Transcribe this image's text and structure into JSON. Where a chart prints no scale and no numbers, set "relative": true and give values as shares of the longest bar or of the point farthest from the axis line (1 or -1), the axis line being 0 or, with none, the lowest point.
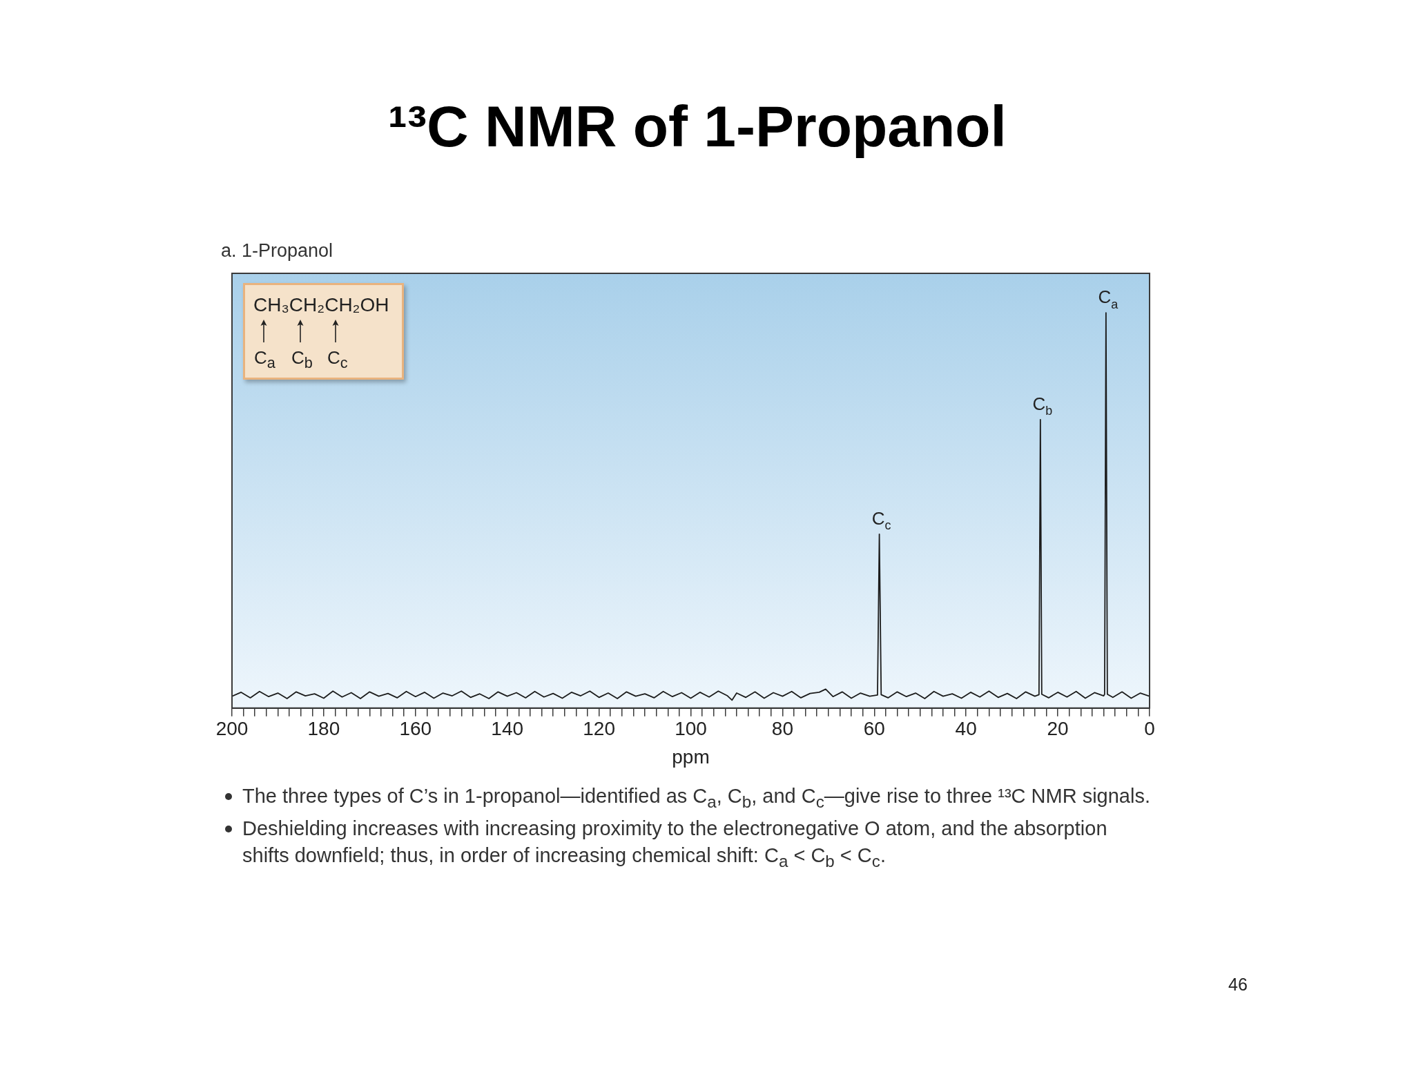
{
  "chart_data": {
    "type": "line",
    "title": "¹³C NMR of 1-Propanol",
    "subtitle": "a. 1-Propanol",
    "xlabel": "ppm",
    "relative": true,
    "xlim": [
      200,
      0
    ],
    "xticks": [
      200,
      {
        "value": 197.5,
        "label": null
      },
      {
        "value": 195,
        "label": null
      },
      {
        "value": 192.5,
        "label": null
      },
      {
        "value": 190,
        "label": null
      },
      {
        "value": 187.5,
        "label": null
      },
      {
        "value": 185,
        "label": null
      },
      {
        "value": 182.5,
        "label": null
      },
      180,
      {
        "value": 177.5,
        "label": null
      },
      {
        "value": 175,
        "label": null
      },
      {
        "value": 172.5,
        "label": null
      },
      {
        "value": 170,
        "label": null
      },
      {
        "value": 167.5,
        "label": null
      },
      {
        "value": 165,
        "label": null
      },
      {
        "value": 162.5,
        "label": null
      },
      160,
      {
        "value": 157.5,
        "label": null
      },
      {
        "value": 155,
        "label": null
      },
      {
        "value": 152.5,
        "label": null
      },
      {
        "value": 150,
        "label": null
      },
      {
        "value": 147.5,
        "label": null
      },
      {
        "value": 145,
        "label": null
      },
      {
        "value": 142.5,
        "label": null
      },
      140,
      {
        "value": 137.5,
        "label": null
      },
      {
        "value": 135,
        "label": null
      },
      {
        "value": 132.5,
        "label": null
      },
      {
        "value": 130,
        "label": null
      },
      {
        "value": 127.5,
        "label": null
      },
      {
        "value": 125,
        "label": null
      },
      {
        "value": 122.5,
        "label": null
      },
      120,
      {
        "value": 117.5,
        "label": null
      },
      {
        "value": 115,
        "label": null
      },
      {
        "value": 112.5,
        "label": null
      },
      {
        "value": 110,
        "label": null
      },
      {
        "value": 107.5,
        "label": null
      },
      {
        "value": 105,
        "label": null
      },
      {
        "value": 102.5,
        "label": null
      },
      100,
      {
        "value": 97.5,
        "label": null
      },
      {
        "value": 95,
        "label": null
      },
      {
        "value": 92.5,
        "label": null
      },
      {
        "value": 90,
        "label": null
      },
      {
        "value": 87.5,
        "label": null
      },
      {
        "value": 85,
        "label": null
      },
      {
        "value": 82.5,
        "label": null
      },
      80,
      {
        "value": 77.5,
        "label": null
      },
      {
        "value": 75,
        "label": null
      },
      {
        "value": 72.5,
        "label": null
      },
      {
        "value": 70,
        "label": null
      },
      {
        "value": 67.5,
        "label": null
      },
      {
        "value": 65,
        "label": null
      },
      {
        "value": 62.5,
        "label": null
      },
      60,
      {
        "value": 57.5,
        "label": null
      },
      {
        "value": 55,
        "label": null
      },
      {
        "value": 52.5,
        "label": null
      },
      {
        "value": 50,
        "label": null
      },
      {
        "value": 47.5,
        "label": null
      },
      {
        "value": 45,
        "label": null
      },
      {
        "value": 42.5,
        "label": null
      },
      40,
      {
        "value": 37.5,
        "label": null
      },
      {
        "value": 35,
        "label": null
      },
      {
        "value": 32.5,
        "label": null
      },
      {
        "value": 30,
        "label": null
      },
      {
        "value": 27.5,
        "label": null
      },
      {
        "value": 25,
        "label": null
      },
      {
        "value": 22.5,
        "label": null
      },
      20,
      {
        "value": 17.5,
        "label": null
      },
      {
        "value": 15,
        "label": null
      },
      {
        "value": 12.5,
        "label": null
      },
      {
        "value": 10,
        "label": null
      },
      {
        "value": 7.5,
        "label": null
      },
      {
        "value": 5,
        "label": null
      },
      {
        "value": 2.5,
        "label": null
      },
      0
    ],
    "series": [
      {
        "color": "#1c1c1c",
        "x": [
          200,
          198,
          196,
          194,
          192,
          190,
          188,
          186,
          184,
          182,
          180,
          178,
          176,
          174,
          172,
          170,
          168,
          166,
          164,
          162,
          160,
          158,
          156,
          154,
          152,
          150,
          148,
          146,
          144,
          142,
          140,
          138,
          136,
          134,
          132,
          130,
          128,
          126,
          124,
          122,
          120,
          118,
          116,
          114,
          112,
          110,
          108,
          106,
          104,
          102,
          100,
          98,
          96,
          94,
          92,
          91,
          90,
          88,
          86,
          84,
          82,
          80,
          78,
          76,
          74,
          72,
          70.6,
          69,
          67,
          65,
          63,
          61,
          59.3,
          58.9,
          58.5,
          57,
          55,
          53,
          51,
          49,
          47,
          45,
          43,
          41,
          39,
          37,
          35,
          33,
          31,
          29,
          27,
          25,
          24.1,
          23.8,
          23.5,
          22,
          20,
          18,
          16,
          14,
          12,
          10,
          9.8,
          9.5,
          9.2,
          8,
          6,
          4,
          2,
          0
        ],
        "values": [
          0.03,
          0.04,
          0.026,
          0.042,
          0.029,
          0.038,
          0.024,
          0.041,
          0.031,
          0.036,
          0.025,
          0.043,
          0.028,
          0.039,
          0.024,
          0.041,
          0.03,
          0.037,
          0.026,
          0.042,
          0.029,
          0.04,
          0.025,
          0.038,
          0.031,
          0.043,
          0.027,
          0.036,
          0.024,
          0.041,
          0.03,
          0.039,
          0.026,
          0.042,
          0.028,
          0.037,
          0.025,
          0.04,
          0.031,
          0.043,
          0.027,
          0.038,
          0.024,
          0.041,
          0.03,
          0.036,
          0.026,
          0.042,
          0.029,
          0.039,
          0.025,
          0.04,
          0.028,
          0.043,
          0.031,
          0.02,
          0.038,
          0.027,
          0.041,
          0.025,
          0.039,
          0.03,
          0.042,
          0.026,
          0.037,
          0.04,
          0.048,
          0.029,
          0.041,
          0.025,
          0.038,
          0.03,
          0.033,
          0.44,
          0.034,
          0.026,
          0.041,
          0.029,
          0.038,
          0.024,
          0.042,
          0.03,
          0.036,
          0.025,
          0.04,
          0.028,
          0.043,
          0.027,
          0.037,
          0.024,
          0.041,
          0.03,
          0.034,
          0.73,
          0.035,
          0.026,
          0.04,
          0.028,
          0.042,
          0.025,
          0.039,
          0.031,
          0.035,
          1,
          0.035,
          0.027,
          0.041,
          0.025,
          0.038,
          0.03
        ]
      }
    ],
    "annotations": [
      "CH₃CH₂CH₂OH",
      "C$_{a}$",
      "C$_{b}$",
      "C$_{c}$",
      "The three types of C’s in 1-propanol—identified as C$_{a}$, C$_{b}$, and C$_{c}$—give rise to three ¹³C NMR signals.",
      "Deshielding increases with increasing proximity to the electronegative O atom, and the absorption shifts downfield; thus, in order of increasing chemical shift: C$_{a}$ < C$_{b}$ < C$_{c}$.",
      "46",
      {
        "text": "C$_{c}$",
        "x": 58.9,
        "y": 0.44
      },
      {
        "text": "C$_{b}$",
        "x": 23.8,
        "y": 0.73
      },
      {
        "text": "C$_{a}$",
        "x": 9.5,
        "y": 1
      }
    ]
  }
}
